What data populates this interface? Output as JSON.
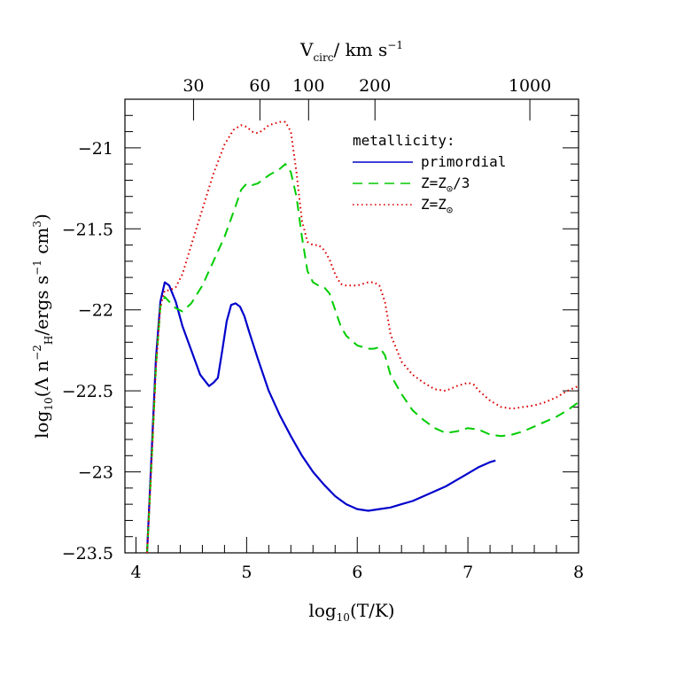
{
  "chart_data": {
    "type": "line",
    "xlabel": {
      "prefix": "log",
      "sub": "10",
      "suffix": "(T/K)"
    },
    "ylabel": {
      "part1": "log",
      "sub1": "10",
      "part2": "(Λ n",
      "sub2": "H",
      "sup2": "−2",
      "part3": "/ergs s",
      "sup3": "−1",
      "part4": " cm",
      "sup4": "3",
      "part5": ")"
    },
    "top_xlabel": {
      "part1": "V",
      "sub1": "circ",
      "part2": "/ km s",
      "sup2": "−1"
    },
    "xlim": [
      3.9,
      8.0
    ],
    "ylim": [
      -23.5,
      -20.7
    ],
    "x_ticks": [
      "4",
      "5",
      "6",
      "7",
      "8"
    ],
    "y_ticks": [
      "−21",
      "−21.5",
      "−22",
      "−22.5",
      "−23",
      "−23.5"
    ],
    "top_ticks": [
      {
        "label": "30",
        "x": 4.52
      },
      {
        "label": "60",
        "x": 5.12
      },
      {
        "label": "100",
        "x": 5.56
      },
      {
        "label": "200",
        "x": 6.16
      },
      {
        "label": "1000",
        "x": 7.56
      }
    ],
    "legend": {
      "title": "metallicity:",
      "position": "top-right",
      "entries": [
        {
          "series": 0,
          "text": "primordial"
        },
        {
          "series": 1,
          "text": "Z=Z",
          "sub": "⊙",
          "tail": "/3"
        },
        {
          "series": 2,
          "text": "Z=Z",
          "sub": "⊙",
          "tail": ""
        }
      ]
    },
    "series": [
      {
        "color": "#0000cc",
        "style": "solid",
        "x": [
          4.1,
          4.14,
          4.18,
          4.22,
          4.26,
          4.3,
          4.36,
          4.42,
          4.5,
          4.58,
          4.66,
          4.7,
          4.74,
          4.78,
          4.82,
          4.86,
          4.9,
          4.94,
          4.98,
          5.02,
          5.1,
          5.2,
          5.3,
          5.4,
          5.5,
          5.6,
          5.7,
          5.8,
          5.9,
          6.0,
          6.1,
          6.2,
          6.3,
          6.4,
          6.5,
          6.6,
          6.8,
          7.0,
          7.1,
          7.2,
          7.25
        ],
        "y": [
          -23.5,
          -22.9,
          -22.3,
          -21.95,
          -21.83,
          -21.85,
          -21.95,
          -22.1,
          -22.25,
          -22.4,
          -22.47,
          -22.45,
          -22.42,
          -22.25,
          -22.07,
          -21.97,
          -21.96,
          -21.98,
          -22.04,
          -22.13,
          -22.3,
          -22.5,
          -22.65,
          -22.78,
          -22.9,
          -23.0,
          -23.08,
          -23.15,
          -23.2,
          -23.23,
          -23.24,
          -23.23,
          -23.22,
          -23.2,
          -23.18,
          -23.15,
          -23.09,
          -23.01,
          -22.97,
          -22.94,
          -22.93
        ]
      },
      {
        "color": "#00cc00",
        "style": "dashed",
        "x": [
          4.1,
          4.14,
          4.18,
          4.22,
          4.26,
          4.3,
          4.36,
          4.42,
          4.5,
          4.6,
          4.7,
          4.8,
          4.9,
          4.95,
          5.0,
          5.05,
          5.1,
          5.2,
          5.3,
          5.35,
          5.4,
          5.45,
          5.5,
          5.55,
          5.6,
          5.65,
          5.7,
          5.75,
          5.8,
          5.85,
          5.9,
          6.0,
          6.1,
          6.15,
          6.2,
          6.25,
          6.3,
          6.4,
          6.5,
          6.6,
          6.7,
          6.8,
          6.9,
          7.0,
          7.1,
          7.2,
          7.3,
          7.4,
          7.5,
          7.6,
          7.7,
          7.8,
          7.9,
          8.0
        ],
        "y": [
          -23.5,
          -22.95,
          -22.35,
          -21.98,
          -21.92,
          -21.95,
          -21.99,
          -22.01,
          -21.96,
          -21.85,
          -21.7,
          -21.55,
          -21.36,
          -21.26,
          -21.22,
          -21.23,
          -21.22,
          -21.17,
          -21.13,
          -21.1,
          -21.15,
          -21.3,
          -21.55,
          -21.76,
          -21.83,
          -21.85,
          -21.86,
          -21.9,
          -22.0,
          -22.1,
          -22.16,
          -22.22,
          -22.24,
          -22.24,
          -22.23,
          -22.28,
          -22.4,
          -22.52,
          -22.62,
          -22.68,
          -22.73,
          -22.76,
          -22.75,
          -22.73,
          -22.74,
          -22.77,
          -22.78,
          -22.77,
          -22.75,
          -22.72,
          -22.69,
          -22.66,
          -22.62,
          -22.57
        ]
      },
      {
        "color": "#dd0000",
        "style": "dotted",
        "x": [
          4.1,
          4.14,
          4.18,
          4.22,
          4.26,
          4.3,
          4.36,
          4.42,
          4.5,
          4.6,
          4.7,
          4.8,
          4.88,
          4.95,
          5.0,
          5.05,
          5.1,
          5.15,
          5.2,
          5.25,
          5.3,
          5.35,
          5.4,
          5.45,
          5.5,
          5.55,
          5.6,
          5.65,
          5.7,
          5.75,
          5.8,
          5.85,
          5.9,
          6.0,
          6.1,
          6.15,
          6.2,
          6.25,
          6.3,
          6.4,
          6.5,
          6.6,
          6.7,
          6.8,
          6.9,
          7.0,
          7.05,
          7.1,
          7.2,
          7.3,
          7.4,
          7.5,
          7.6,
          7.7,
          7.8,
          7.9,
          8.0
        ],
        "y": [
          -23.5,
          -22.95,
          -22.35,
          -21.98,
          -21.88,
          -21.88,
          -21.86,
          -21.78,
          -21.6,
          -21.38,
          -21.16,
          -20.98,
          -20.89,
          -20.86,
          -20.87,
          -20.9,
          -20.91,
          -20.89,
          -20.86,
          -20.85,
          -20.84,
          -20.84,
          -20.9,
          -21.15,
          -21.45,
          -21.58,
          -21.6,
          -21.6,
          -21.63,
          -21.69,
          -21.78,
          -21.84,
          -21.85,
          -21.85,
          -21.83,
          -21.83,
          -21.85,
          -21.95,
          -22.15,
          -22.32,
          -22.4,
          -22.45,
          -22.49,
          -22.5,
          -22.47,
          -22.45,
          -22.46,
          -22.5,
          -22.56,
          -22.6,
          -22.61,
          -22.6,
          -22.59,
          -22.57,
          -22.54,
          -22.5,
          -22.47
        ]
      }
    ]
  }
}
